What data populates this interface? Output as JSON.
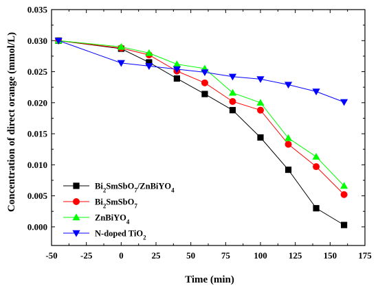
{
  "chart_data": {
    "type": "line",
    "xlabel": "Time (min)",
    "ylabel": "Concentration of direct orange (mmol/L)",
    "xlim": [
      -50,
      175
    ],
    "ylim": [
      -0.003,
      0.035
    ],
    "xticks": [
      "-50",
      "-25",
      "0",
      "25",
      "50",
      "75",
      "100",
      "125",
      "150",
      "175"
    ],
    "yticks": [
      "0.000",
      "0.005",
      "0.010",
      "0.015",
      "0.020",
      "0.025",
      "0.030",
      "0.035"
    ],
    "grid": false,
    "legend_position": "bottom-left",
    "series": [
      {
        "name": "Bi₂SmSbO₇/ZnBiYO₄",
        "legend_base": "Bi",
        "legend_parts": [
          [
            "Bi",
            ""
          ],
          [
            "2",
            "sub"
          ],
          [
            "SmSbO",
            ""
          ],
          [
            "7",
            "sub"
          ],
          [
            "/ZnBiYO",
            ""
          ],
          [
            "4",
            "sub"
          ]
        ],
        "color": "#000000",
        "marker": "square",
        "x": [
          -45,
          0,
          20,
          40,
          60,
          80,
          100,
          120,
          140,
          160
        ],
        "y": [
          0.03,
          0.0287,
          0.0265,
          0.0239,
          0.0214,
          0.0188,
          0.0144,
          0.0092,
          0.003,
          0.0003
        ]
      },
      {
        "name": "Bi₂SmSbO₇",
        "legend_parts": [
          [
            "Bi",
            ""
          ],
          [
            "2",
            "sub"
          ],
          [
            "SmSbO",
            ""
          ],
          [
            "7",
            "sub"
          ]
        ],
        "color": "#ff0000",
        "marker": "circle",
        "x": [
          -45,
          0,
          20,
          40,
          60,
          80,
          100,
          120,
          140,
          160
        ],
        "y": [
          0.03,
          0.0288,
          0.0277,
          0.0251,
          0.0232,
          0.0202,
          0.0188,
          0.0133,
          0.0097,
          0.0052
        ]
      },
      {
        "name": "ZnBiYO₄",
        "legend_parts": [
          [
            "ZnBiYO",
            ""
          ],
          [
            "4",
            "sub"
          ]
        ],
        "color": "#00ff00",
        "marker": "triangle-up",
        "x": [
          -45,
          0,
          20,
          40,
          60,
          80,
          100,
          120,
          140,
          160
        ],
        "y": [
          0.03,
          0.029,
          0.028,
          0.0262,
          0.0255,
          0.0216,
          0.02,
          0.0143,
          0.0113,
          0.0066
        ]
      },
      {
        "name": "N-doped TiO₂",
        "legend_parts": [
          [
            "N-doped TiO",
            ""
          ],
          [
            "2",
            "sub"
          ]
        ],
        "color": "#0000ff",
        "marker": "triangle-down",
        "x": [
          -45,
          0,
          20,
          40,
          60,
          80,
          100,
          120,
          140,
          160
        ],
        "y": [
          0.03,
          0.0264,
          0.0259,
          0.0254,
          0.0249,
          0.0242,
          0.0238,
          0.0229,
          0.0218,
          0.0201
        ]
      }
    ]
  }
}
